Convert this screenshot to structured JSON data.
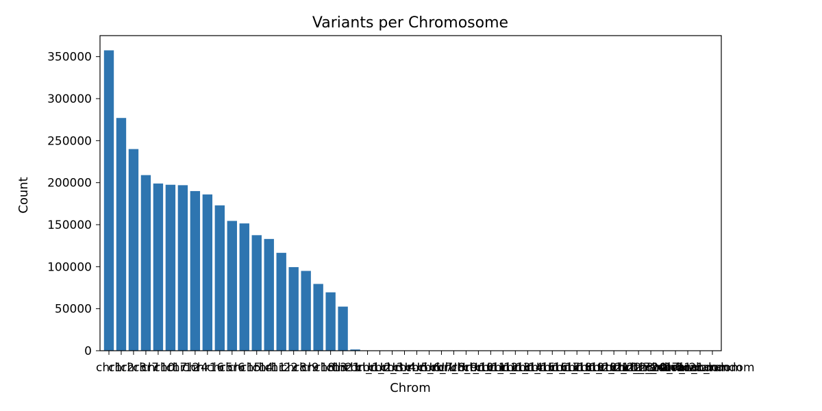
{
  "chart_data": {
    "type": "bar",
    "title": "Variants per Chromosome",
    "xlabel": "Chrom",
    "ylabel": "Count",
    "ylim": [
      0,
      375000
    ],
    "yticks": [
      0,
      50000,
      100000,
      150000,
      200000,
      250000,
      300000,
      350000
    ],
    "color": "#2e75b0",
    "grid": false,
    "categories": [
      "chr1",
      "chr2",
      "chr3",
      "chr7",
      "chr10",
      "chr17",
      "chr12",
      "chr4",
      "chr16",
      "chr5",
      "chr6",
      "chr15",
      "chr14",
      "chr11",
      "chr22",
      "chr8",
      "chr9",
      "chr18",
      "chr13",
      "chr21",
      "chrUn_1",
      "chrUn_2",
      "chrUn_3",
      "chrUn_4",
      "chrUn_5",
      "chrUn_6",
      "chrUn_7",
      "chrUn_8",
      "chrUn_9",
      "chrUn_10",
      "chrUn_11",
      "chrUn_12",
      "chrUn_13",
      "chrUn_14",
      "chrUn_15",
      "chrUn_16",
      "chrUn_17",
      "chrUn_18",
      "chrUn_19",
      "chrUn_20",
      "chrUn_21",
      "chrUn_22",
      "chrUn_23",
      "chrUn_24",
      "chr1_random",
      "chr7_random",
      "chr10_random",
      "chr17_random",
      "chr11_random",
      "chr21_random"
    ],
    "values": [
      357500,
      277000,
      240000,
      209000,
      199000,
      197500,
      197000,
      190000,
      186000,
      173000,
      154500,
      151500,
      137500,
      133000,
      116500,
      99500,
      95000,
      79500,
      69500,
      52500,
      1500,
      300,
      200,
      150,
      120,
      100,
      100,
      100,
      90,
      80,
      80,
      70,
      60,
      60,
      50,
      50,
      50,
      40,
      40,
      40,
      30,
      30,
      30,
      20,
      20,
      20,
      20,
      10,
      10,
      10
    ]
  }
}
